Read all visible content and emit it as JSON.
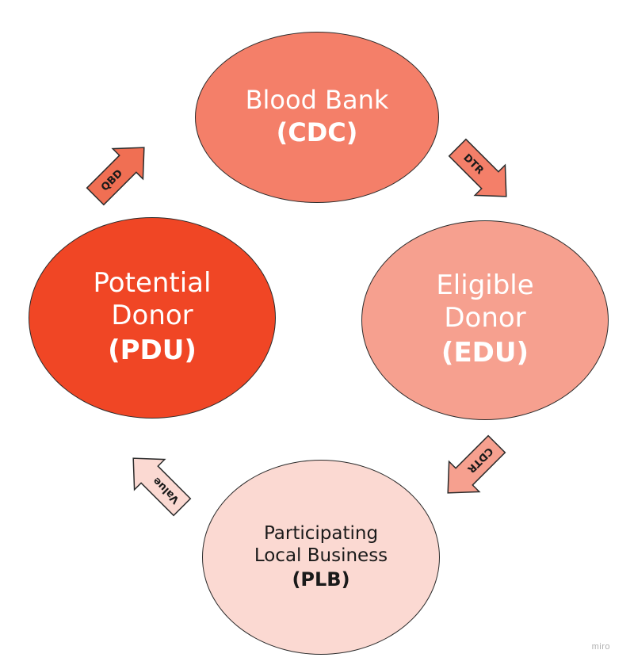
{
  "nodes": {
    "cdc": {
      "name_lines": [
        "Blood Bank"
      ],
      "abbr": "(CDC)",
      "fill": "#f47f69"
    },
    "pdu": {
      "name_lines": [
        "Potential",
        "Donor"
      ],
      "abbr": "(PDU)",
      "fill": "#f04625"
    },
    "edu": {
      "name_lines": [
        "Eligible",
        "Donor"
      ],
      "abbr": "(EDU)",
      "fill": "#f6a08f"
    },
    "plb": {
      "name_lines": [
        "Participating",
        "Local Business"
      ],
      "abbr": "(PLB)",
      "fill": "#fbd9d2"
    }
  },
  "arrows": {
    "qbd": {
      "label": "QBD",
      "fill": "#f06f53"
    },
    "dtr": {
      "label": "DTR",
      "fill": "#f47f69"
    },
    "cdtr": {
      "label": "CDTR",
      "fill": "#f6a08f"
    },
    "value": {
      "label": "Value",
      "fill": "#fbd9d2"
    }
  },
  "watermark": "miro"
}
